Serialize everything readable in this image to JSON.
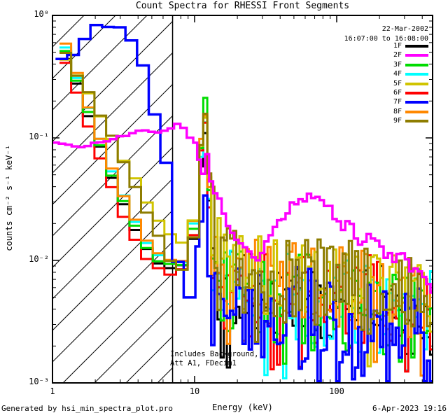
{
  "header": {
    "title": "Count Spectra for RHESSI Front Segments"
  },
  "footer": {
    "left": "Generated by hsi_min_spectra_plot.pro",
    "right": "6-Apr-2023 19:16"
  },
  "legend": {
    "date": "22-Mar-2002",
    "time_range": "16:07:00 to 16:08:00"
  },
  "chart_data": {
    "type": "line",
    "title": "Count Spectra for RHESSI Front Segments",
    "xlabel": "Energy (keV)",
    "ylabel": "counts cm⁻² s⁻¹ keV⁻¹",
    "xscale": "log",
    "yscale": "log",
    "xlim": [
      1,
      473
    ],
    "ylim": [
      0.001,
      1
    ],
    "x_ticks": [
      {
        "value": 1,
        "label": "1"
      },
      {
        "value": 10,
        "label": "10"
      },
      {
        "value": 100,
        "label": "100"
      }
    ],
    "y_ticks": [
      {
        "value": 1,
        "label": "10⁰"
      },
      {
        "value": 0.1,
        "label": "10⁻¹"
      },
      {
        "value": 0.01,
        "label": "10⁻²"
      },
      {
        "value": 0.001,
        "label": "10⁻³"
      }
    ],
    "annotations": [
      "Includes Background,",
      "Att A1, FDecim1"
    ],
    "hatch_region": {
      "x_start_kev": 1,
      "x_end_kev": 7.0
    },
    "threshold_line_kev": 7.0,
    "bin_dex": {
      "low": 0.082,
      "mid": 0.028,
      "high": 0.022
    },
    "draw_order": [
      "1F",
      "4F",
      "6F",
      "3F",
      "8F",
      "5F",
      "7F",
      "9F",
      "2F"
    ],
    "series": [
      {
        "name": "1F",
        "color": "#000000",
        "width": 3,
        "seed": 101,
        "jitter": 0.02,
        "noise": 0.36,
        "dip": 0.05,
        "anchors": [
          [
            1.12,
            0.57
          ],
          [
            1.3,
            0.4
          ],
          [
            1.5,
            0.27
          ],
          [
            1.75,
            0.165
          ],
          [
            2.05,
            0.1
          ],
          [
            2.4,
            0.062
          ],
          [
            2.8,
            0.04
          ],
          [
            3.3,
            0.026
          ],
          [
            3.9,
            0.017
          ],
          [
            4.6,
            0.0125
          ],
          [
            5.4,
            0.01
          ],
          [
            6.3,
            0.0092
          ],
          [
            7.4,
            0.0088
          ],
          [
            8.7,
            0.009
          ],
          [
            9.6,
            0.012
          ],
          [
            10.4,
            0.03
          ],
          [
            11.3,
            0.07
          ],
          [
            11.9,
            0.115
          ],
          [
            12.5,
            0.045
          ],
          [
            13.1,
            0.012
          ],
          [
            13.6,
            0.007
          ],
          [
            15,
            0.0057
          ],
          [
            40,
            0.005
          ],
          [
            100,
            0.0046
          ],
          [
            250,
            0.004
          ],
          [
            473,
            0.0034
          ]
        ]
      },
      {
        "name": "2F",
        "color": "#FF00FF",
        "width": 3.5,
        "seed": 202,
        "jitter": 0.015,
        "noise": 0.05,
        "dip": 0,
        "bin_low": 0.045,
        "bin_high": 0.03,
        "anchors": [
          [
            1.0,
            0.095
          ],
          [
            1.25,
            0.09
          ],
          [
            1.5,
            0.084
          ],
          [
            1.8,
            0.088
          ],
          [
            2.2,
            0.094
          ],
          [
            2.7,
            0.099
          ],
          [
            3.3,
            0.104
          ],
          [
            4.0,
            0.111
          ],
          [
            4.8,
            0.116
          ],
          [
            5.5,
            0.112
          ],
          [
            6.2,
            0.118
          ],
          [
            6.9,
            0.121
          ],
          [
            7.6,
            0.128
          ],
          [
            8.2,
            0.122
          ],
          [
            8.9,
            0.108
          ],
          [
            9.7,
            0.096
          ],
          [
            10.4,
            0.086
          ],
          [
            10.9,
            0.058
          ],
          [
            11.5,
            0.052
          ],
          [
            11.9,
            0.2
          ],
          [
            12.4,
            0.05
          ],
          [
            13.2,
            0.042
          ],
          [
            14.2,
            0.033
          ],
          [
            15.5,
            0.026
          ],
          [
            17,
            0.02
          ],
          [
            19,
            0.016
          ],
          [
            21,
            0.0135
          ],
          [
            24,
            0.011
          ],
          [
            27,
            0.0098
          ],
          [
            30,
            0.0105
          ],
          [
            33,
            0.014
          ],
          [
            36,
            0.017
          ],
          [
            40,
            0.021
          ],
          [
            45,
            0.026
          ],
          [
            50,
            0.03
          ],
          [
            56,
            0.033
          ],
          [
            63,
            0.0345
          ],
          [
            70,
            0.033
          ],
          [
            76,
            0.035
          ],
          [
            82,
            0.03
          ],
          [
            90,
            0.027
          ],
          [
            100,
            0.023
          ],
          [
            108,
            0.019
          ],
          [
            115,
            0.0165
          ],
          [
            122,
            0.03
          ],
          [
            128,
            0.021
          ],
          [
            136,
            0.016
          ],
          [
            146,
            0.013
          ],
          [
            160,
            0.0145
          ],
          [
            175,
            0.015
          ],
          [
            190,
            0.0135
          ],
          [
            205,
            0.0125
          ],
          [
            225,
            0.0115
          ],
          [
            250,
            0.0108
          ],
          [
            275,
            0.01
          ],
          [
            300,
            0.0105
          ],
          [
            320,
            0.0094
          ],
          [
            345,
            0.0086
          ],
          [
            380,
            0.0076
          ],
          [
            420,
            0.0064
          ],
          [
            455,
            0.0054
          ],
          [
            473,
            0.005
          ]
        ]
      },
      {
        "name": "3F",
        "color": "#00DC00",
        "width": 3,
        "seed": 303,
        "jitter": 0.02,
        "noise": 0.4,
        "dip": 0.05,
        "anchors": [
          [
            1.12,
            0.62
          ],
          [
            1.3,
            0.43
          ],
          [
            1.5,
            0.29
          ],
          [
            1.75,
            0.18
          ],
          [
            2.05,
            0.105
          ],
          [
            2.4,
            0.065
          ],
          [
            2.8,
            0.042
          ],
          [
            3.3,
            0.027
          ],
          [
            3.9,
            0.018
          ],
          [
            4.6,
            0.013
          ],
          [
            5.4,
            0.0105
          ],
          [
            6.3,
            0.0095
          ],
          [
            7.4,
            0.009
          ],
          [
            8.7,
            0.0095
          ],
          [
            9.6,
            0.014
          ],
          [
            10.4,
            0.035
          ],
          [
            11.3,
            0.1
          ],
          [
            11.9,
            0.21
          ],
          [
            12.5,
            0.06
          ],
          [
            13.1,
            0.015
          ],
          [
            13.7,
            0.007
          ],
          [
            15,
            0.0052
          ],
          [
            40,
            0.0048
          ],
          [
            100,
            0.0043
          ],
          [
            250,
            0.0038
          ],
          [
            473,
            0.0032
          ]
        ]
      },
      {
        "name": "4F",
        "color": "#00FFFF",
        "width": 3,
        "seed": 404,
        "jitter": 0.02,
        "noise": 0.38,
        "dip": 0.05,
        "anchors": [
          [
            1.12,
            0.71
          ],
          [
            1.3,
            0.48
          ],
          [
            1.5,
            0.31
          ],
          [
            1.75,
            0.19
          ],
          [
            2.05,
            0.115
          ],
          [
            2.4,
            0.07
          ],
          [
            2.8,
            0.045
          ],
          [
            3.3,
            0.029
          ],
          [
            3.9,
            0.019
          ],
          [
            4.6,
            0.014
          ],
          [
            5.4,
            0.011
          ],
          [
            6.3,
            0.01
          ],
          [
            7.4,
            0.0095
          ],
          [
            8.7,
            0.01
          ],
          [
            9.6,
            0.015
          ],
          [
            10.4,
            0.04
          ],
          [
            11.3,
            0.08
          ],
          [
            11.9,
            0.13
          ],
          [
            12.5,
            0.05
          ],
          [
            13.1,
            0.013
          ],
          [
            13.7,
            0.0065
          ],
          [
            15,
            0.0053
          ],
          [
            40,
            0.005
          ],
          [
            100,
            0.0044
          ],
          [
            250,
            0.004
          ],
          [
            473,
            0.0034
          ]
        ]
      },
      {
        "name": "5F",
        "color": "#D0C400",
        "width": 3,
        "seed": 505,
        "jitter": 0.02,
        "noise": 0.33,
        "dip": 0.04,
        "anchors": [
          [
            1.12,
            0.54
          ],
          [
            1.3,
            0.41
          ],
          [
            1.55,
            0.3
          ],
          [
            1.85,
            0.21
          ],
          [
            2.2,
            0.145
          ],
          [
            2.6,
            0.1
          ],
          [
            3.05,
            0.072
          ],
          [
            3.6,
            0.052
          ],
          [
            4.2,
            0.037
          ],
          [
            4.9,
            0.027
          ],
          [
            5.7,
            0.02
          ],
          [
            6.6,
            0.016
          ],
          [
            7.7,
            0.014
          ],
          [
            8.9,
            0.015
          ],
          [
            9.8,
            0.021
          ],
          [
            10.6,
            0.05
          ],
          [
            11.3,
            0.1
          ],
          [
            11.9,
            0.15
          ],
          [
            12.6,
            0.052
          ],
          [
            13.4,
            0.022
          ],
          [
            14.2,
            0.012
          ],
          [
            16,
            0.0088
          ],
          [
            40,
            0.0072
          ],
          [
            100,
            0.0062
          ],
          [
            250,
            0.0052
          ],
          [
            473,
            0.0046
          ]
        ]
      },
      {
        "name": "6F",
        "color": "#FF0000",
        "width": 3,
        "seed": 606,
        "jitter": 0.02,
        "noise": 0.4,
        "dip": 0.05,
        "anchors": [
          [
            1.12,
            0.5
          ],
          [
            1.3,
            0.34
          ],
          [
            1.5,
            0.22
          ],
          [
            1.75,
            0.135
          ],
          [
            2.05,
            0.082
          ],
          [
            2.4,
            0.052
          ],
          [
            2.8,
            0.033
          ],
          [
            3.3,
            0.021
          ],
          [
            3.9,
            0.0145
          ],
          [
            4.6,
            0.0105
          ],
          [
            5.4,
            0.0088
          ],
          [
            6.3,
            0.008
          ],
          [
            7.4,
            0.0078
          ],
          [
            8.7,
            0.0085
          ],
          [
            9.6,
            0.012
          ],
          [
            10.4,
            0.032
          ],
          [
            11.3,
            0.09
          ],
          [
            11.9,
            0.14
          ],
          [
            12.5,
            0.04
          ],
          [
            13.1,
            0.011
          ],
          [
            13.7,
            0.006
          ],
          [
            15,
            0.0056
          ],
          [
            40,
            0.0052
          ],
          [
            100,
            0.0047
          ],
          [
            250,
            0.0042
          ],
          [
            473,
            0.0036
          ]
        ]
      },
      {
        "name": "7F",
        "color": "#0000FF",
        "width": 3.5,
        "seed": 707,
        "jitter": 0.02,
        "noise": 0.42,
        "dip": 0.1,
        "anchors": [
          [
            1.05,
            0.45
          ],
          [
            1.45,
            0.46
          ],
          [
            1.6,
            0.62
          ],
          [
            1.95,
            0.79
          ],
          [
            2.25,
            0.82
          ],
          [
            2.6,
            0.78
          ],
          [
            2.95,
            0.8
          ],
          [
            3.35,
            0.7
          ],
          [
            3.8,
            0.55
          ],
          [
            4.3,
            0.38
          ],
          [
            4.78,
            0.28
          ],
          [
            5.2,
            0.155
          ],
          [
            5.8,
            0.1
          ],
          [
            6.3,
            0.062
          ],
          [
            6.9,
            0.035
          ],
          [
            7.4,
            0.013
          ],
          [
            8.0,
            0.006
          ],
          [
            8.8,
            0.0042
          ],
          [
            9.6,
            0.006
          ],
          [
            10.4,
            0.012
          ],
          [
            11.2,
            0.022
          ],
          [
            11.9,
            0.033
          ],
          [
            12.5,
            0.009
          ],
          [
            13.2,
            0.004
          ],
          [
            15,
            0.004
          ],
          [
            40,
            0.0036
          ],
          [
            100,
            0.0031
          ],
          [
            250,
            0.0028
          ],
          [
            473,
            0.0025
          ]
        ]
      },
      {
        "name": "8F",
        "color": "#FF8800",
        "width": 3,
        "seed": 808,
        "jitter": 0.02,
        "noise": 0.34,
        "dip": 0.04,
        "anchors": [
          [
            1.12,
            0.74
          ],
          [
            1.3,
            0.5
          ],
          [
            1.5,
            0.32
          ],
          [
            1.75,
            0.2
          ],
          [
            2.05,
            0.12
          ],
          [
            2.4,
            0.073
          ],
          [
            2.8,
            0.047
          ],
          [
            3.3,
            0.03
          ],
          [
            3.9,
            0.02
          ],
          [
            4.6,
            0.0145
          ],
          [
            5.4,
            0.0115
          ],
          [
            6.3,
            0.0105
          ],
          [
            7.4,
            0.01
          ],
          [
            8.7,
            0.0105
          ],
          [
            9.6,
            0.016
          ],
          [
            10.4,
            0.045
          ],
          [
            11.3,
            0.11
          ],
          [
            11.9,
            0.16
          ],
          [
            12.5,
            0.06
          ],
          [
            13.1,
            0.018
          ],
          [
            13.7,
            0.008
          ],
          [
            15,
            0.0076
          ],
          [
            40,
            0.0068
          ],
          [
            100,
            0.006
          ],
          [
            250,
            0.0053
          ],
          [
            473,
            0.0046
          ]
        ]
      },
      {
        "name": "9F",
        "color": "#8E7D00",
        "width": 3,
        "seed": 909,
        "jitter": 0.02,
        "noise": 0.38,
        "dip": 0.04,
        "anchors": [
          [
            1.12,
            0.57
          ],
          [
            1.3,
            0.43
          ],
          [
            1.55,
            0.31
          ],
          [
            1.85,
            0.215
          ],
          [
            2.2,
            0.15
          ],
          [
            2.6,
            0.105
          ],
          [
            3.05,
            0.07
          ],
          [
            3.6,
            0.048
          ],
          [
            4.2,
            0.032
          ],
          [
            4.9,
            0.022
          ],
          [
            5.7,
            0.015
          ],
          [
            6.6,
            0.0105
          ],
          [
            7.7,
            0.0085
          ],
          [
            8.9,
            0.009
          ],
          [
            9.8,
            0.015
          ],
          [
            10.6,
            0.045
          ],
          [
            11.3,
            0.1
          ],
          [
            11.9,
            0.155
          ],
          [
            12.6,
            0.055
          ],
          [
            13.4,
            0.02
          ],
          [
            14.2,
            0.009
          ],
          [
            16,
            0.008
          ],
          [
            40,
            0.0071
          ],
          [
            100,
            0.0063
          ],
          [
            250,
            0.0056
          ],
          [
            473,
            0.0049
          ]
        ]
      }
    ]
  }
}
